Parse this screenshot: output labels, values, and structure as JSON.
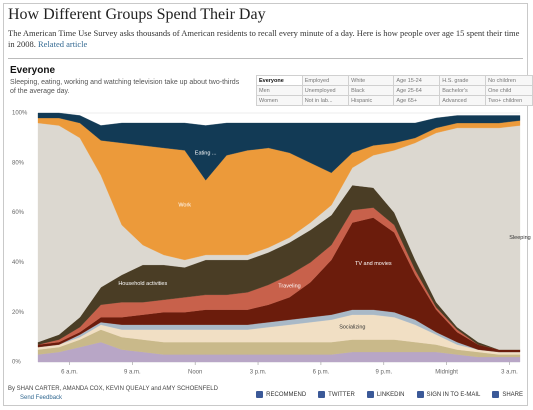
{
  "header": {
    "title": "How Different Groups Spend Their Day",
    "description": "The American Time Use Survey asks thousands of American residents to recall every minute of a day. Here is how people over age 15 spent their time in 2008.",
    "link": "Related article"
  },
  "section": {
    "title": "Everyone",
    "subtitle": "Sleeping, eating, working and watching television take up about two-thirds of the average day."
  },
  "filters": {
    "rows": [
      [
        "Everyone",
        "Employed",
        "White",
        "Age 15-24",
        "H.S. grade",
        "No children"
      ],
      [
        "Men",
        "Unemployed",
        "Black",
        "Age 25-64",
        "Bachelor's",
        "One child"
      ],
      [
        "Women",
        "Not in lab...",
        "Hispanic",
        "Age 65+",
        "Advanced",
        "Two+ children"
      ]
    ],
    "selected": "Everyone"
  },
  "chart_data": {
    "type": "stacked_area",
    "x": [
      4.5,
      5.5,
      6.5,
      7.5,
      8.5,
      9.5,
      10.5,
      11.5,
      12.5,
      13.5,
      14.5,
      15.5,
      16.5,
      17.5,
      18.5,
      19.5,
      20.5,
      21.5,
      22.5,
      23.5,
      24.5,
      25.5,
      26.5,
      27.5
    ],
    "xlim": [
      4.5,
      27.5
    ],
    "xticks": [
      {
        "value": 6,
        "label": "6 a.m."
      },
      {
        "value": 9,
        "label": "9 a.m."
      },
      {
        "value": 12,
        "label": "Noon"
      },
      {
        "value": 15,
        "label": "3 p.m."
      },
      {
        "value": 18,
        "label": "6 p.m."
      },
      {
        "value": 21,
        "label": "9 p.m."
      },
      {
        "value": 24,
        "label": "Midnight"
      },
      {
        "value": 27,
        "label": "3 a.m."
      }
    ],
    "ylim": [
      0,
      100
    ],
    "yticks": [
      {
        "value": 0,
        "label": "0%"
      },
      {
        "value": 20,
        "label": "20%"
      },
      {
        "value": 40,
        "label": "40%"
      },
      {
        "value": 60,
        "label": "60%"
      },
      {
        "value": 80,
        "label": "80%"
      },
      {
        "value": 100,
        "label": "100%"
      }
    ],
    "grid": true,
    "series": [
      {
        "name": null,
        "color": "#b8a6c6",
        "values": [
          3,
          4,
          6,
          8,
          5,
          4,
          3,
          3,
          3,
          3,
          3,
          3,
          3,
          3,
          3,
          4,
          4,
          4,
          4,
          4,
          3,
          2,
          2,
          2
        ]
      },
      {
        "name": null,
        "color": "#c9b98a",
        "values": [
          2,
          2,
          3,
          5,
          5,
          5,
          5,
          5,
          5,
          5,
          5,
          5,
          5,
          5,
          5,
          5,
          5,
          5,
          4,
          3,
          2,
          2,
          1,
          1
        ]
      },
      {
        "name": "Socializing",
        "color": "#f1dfc4",
        "values": [
          1,
          1,
          1,
          2,
          3,
          4,
          5,
          5,
          5,
          5,
          5,
          6,
          7,
          8,
          9,
          10,
          10,
          9,
          7,
          4,
          2,
          1,
          1,
          1
        ]
      },
      {
        "name": null,
        "color": "#a9b9c7",
        "values": [
          0,
          0,
          1,
          1,
          2,
          2,
          2,
          2,
          2,
          2,
          2,
          2,
          2,
          2,
          2,
          2,
          2,
          2,
          2,
          1,
          1,
          0,
          0,
          0
        ]
      },
      {
        "name": "TV and movies",
        "color": "#6b1c0c",
        "values": [
          1,
          1,
          1,
          2,
          3,
          4,
          5,
          5,
          6,
          6,
          6,
          7,
          9,
          14,
          22,
          35,
          37,
          32,
          18,
          9,
          4,
          2,
          1,
          1
        ]
      },
      {
        "name": "Traveling",
        "color": "#c8614b",
        "values": [
          0,
          1,
          2,
          5,
          6,
          5,
          5,
          6,
          6,
          6,
          7,
          8,
          9,
          8,
          6,
          5,
          4,
          3,
          2,
          1,
          1,
          0,
          0,
          0
        ]
      },
      {
        "name": "Household activities",
        "color": "#4a3d25",
        "values": [
          1,
          2,
          4,
          7,
          11,
          15,
          14,
          12,
          14,
          14,
          13,
          13,
          13,
          13,
          12,
          10,
          8,
          5,
          4,
          2,
          1,
          1,
          0,
          0
        ]
      },
      {
        "name": "Sleeping",
        "color": "#dcd8d0",
        "values": [
          88,
          84,
          72,
          45,
          20,
          8,
          4,
          3,
          2,
          2,
          2,
          2,
          2,
          3,
          4,
          7,
          13,
          25,
          47,
          68,
          80,
          86,
          89,
          90
        ]
      },
      {
        "name": "Work",
        "color": "#ec9a3a",
        "values": [
          2,
          3,
          6,
          14,
          33,
          40,
          43,
          44,
          30,
          40,
          42,
          40,
          34,
          24,
          13,
          6,
          4,
          3,
          2,
          2,
          2,
          2,
          2,
          2
        ]
      },
      {
        "name": "Eating ...",
        "color": "#123a55",
        "values": [
          2,
          2,
          3,
          6,
          8,
          9,
          10,
          11,
          22,
          13,
          11,
          10,
          12,
          16,
          20,
          12,
          9,
          8,
          6,
          4,
          3,
          3,
          3,
          2
        ]
      }
    ]
  },
  "byline": "By SHAN CARTER, AMANDA COX, KEVIN QUEALY and AMY SCHOENFELD",
  "feedback": "Send Feedback",
  "share": [
    "RECOMMEND",
    "TWITTER",
    "LINKEDIN",
    "SIGN IN TO E-MAIL",
    "SHARE"
  ]
}
